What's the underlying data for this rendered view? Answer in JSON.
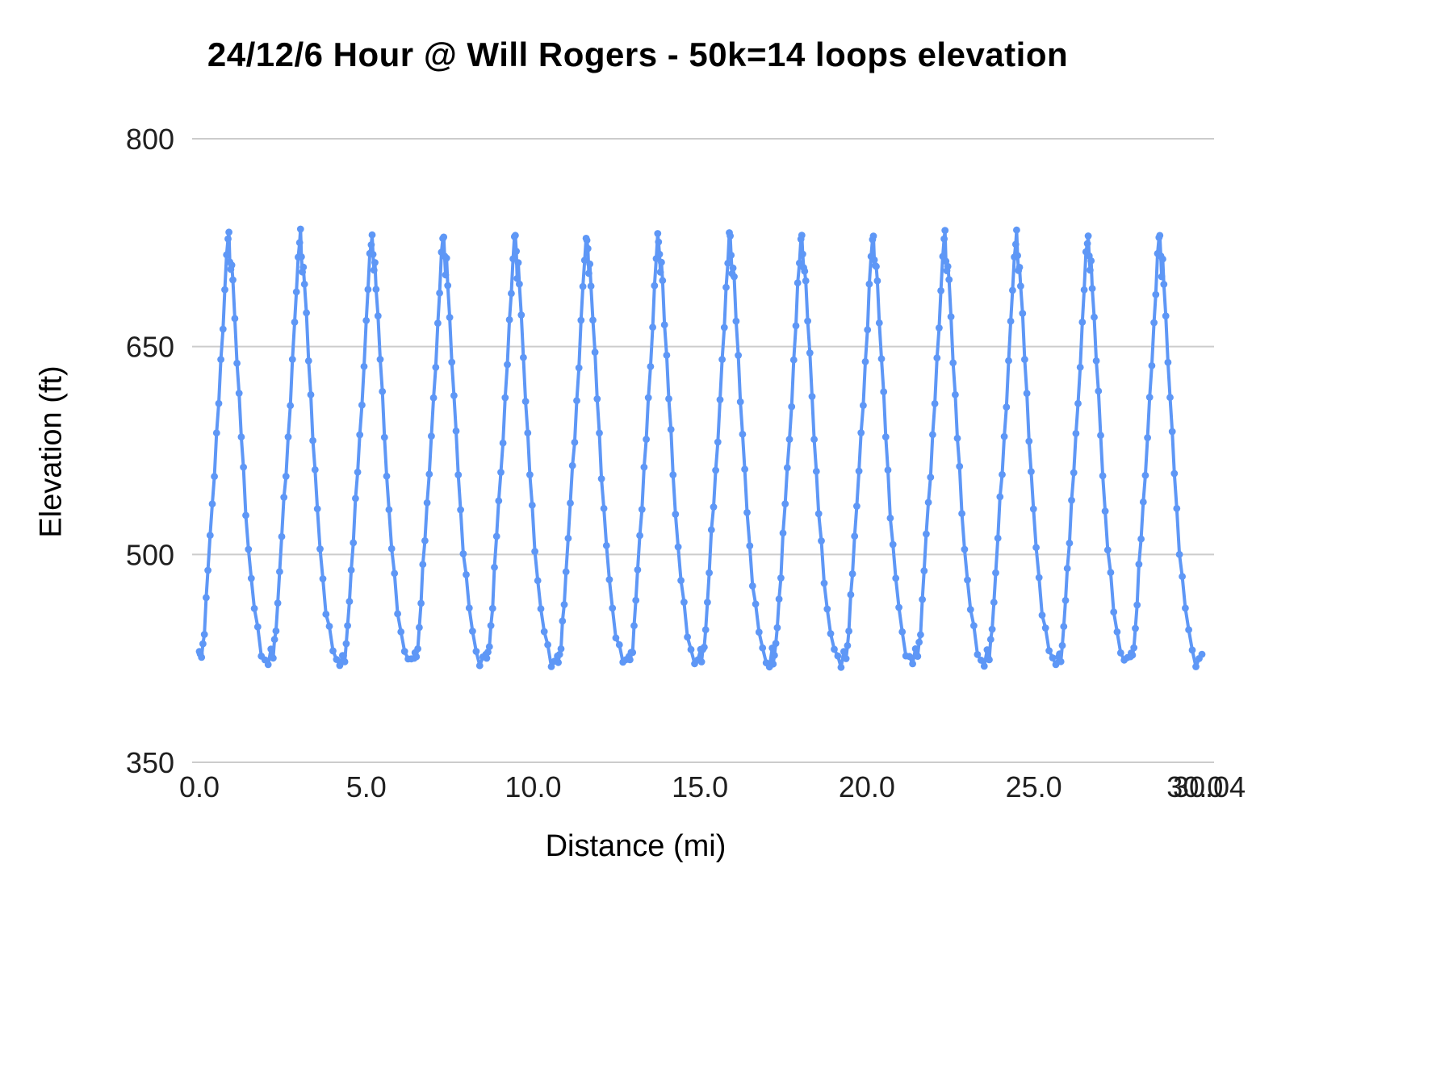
{
  "chart_data": {
    "type": "line",
    "title": "24/12/6 Hour @ Will Rogers  - 50k=14 loops  elevation",
    "xlabel": "Distance (mi)",
    "ylabel": "Elevation (ft)",
    "xlim": [
      0,
      30.04
    ],
    "ylim": [
      350,
      800
    ],
    "yticks": [
      800,
      650,
      500,
      350
    ],
    "xticks": [
      0,
      5,
      10,
      15,
      20,
      25,
      30
    ],
    "xtick_labels": [
      "0.0",
      "5.0",
      "10.0",
      "15.0",
      "20.0",
      "25.0",
      "30.0"
    ],
    "end_xtick": {
      "value": 30.04,
      "label": "30.04"
    },
    "grid": true,
    "legend": "none",
    "line_color": "#5e97f6",
    "grid_color": "#cccccc",
    "loops": 14,
    "total_distance_mi": 30.04,
    "loop_length_mi": 2.146,
    "peak_elevation_ft": 730,
    "valley_elevation_ft": 423,
    "start_elevation_ft": 430,
    "loop_profile_frac_elev": [
      [
        0.0,
        430
      ],
      [
        0.012,
        425
      ],
      [
        0.03,
        427
      ],
      [
        0.05,
        434
      ],
      [
        0.07,
        447
      ],
      [
        0.095,
        466
      ],
      [
        0.12,
        488
      ],
      [
        0.15,
        513
      ],
      [
        0.18,
        537
      ],
      [
        0.21,
        560
      ],
      [
        0.24,
        584
      ],
      [
        0.27,
        610
      ],
      [
        0.3,
        638
      ],
      [
        0.33,
        666
      ],
      [
        0.355,
        692
      ],
      [
        0.38,
        714
      ],
      [
        0.4,
        728
      ],
      [
        0.412,
        730
      ],
      [
        0.425,
        716
      ],
      [
        0.438,
        704
      ],
      [
        0.452,
        709
      ],
      [
        0.468,
        696
      ],
      [
        0.495,
        670
      ],
      [
        0.525,
        642
      ],
      [
        0.555,
        614
      ],
      [
        0.585,
        586
      ],
      [
        0.615,
        559
      ],
      [
        0.648,
        531
      ],
      [
        0.685,
        505
      ],
      [
        0.725,
        482
      ],
      [
        0.768,
        461
      ],
      [
        0.815,
        444
      ],
      [
        0.865,
        431
      ],
      [
        0.915,
        423
      ],
      [
        0.96,
        422
      ],
      [
        1.0,
        429
      ]
    ]
  }
}
